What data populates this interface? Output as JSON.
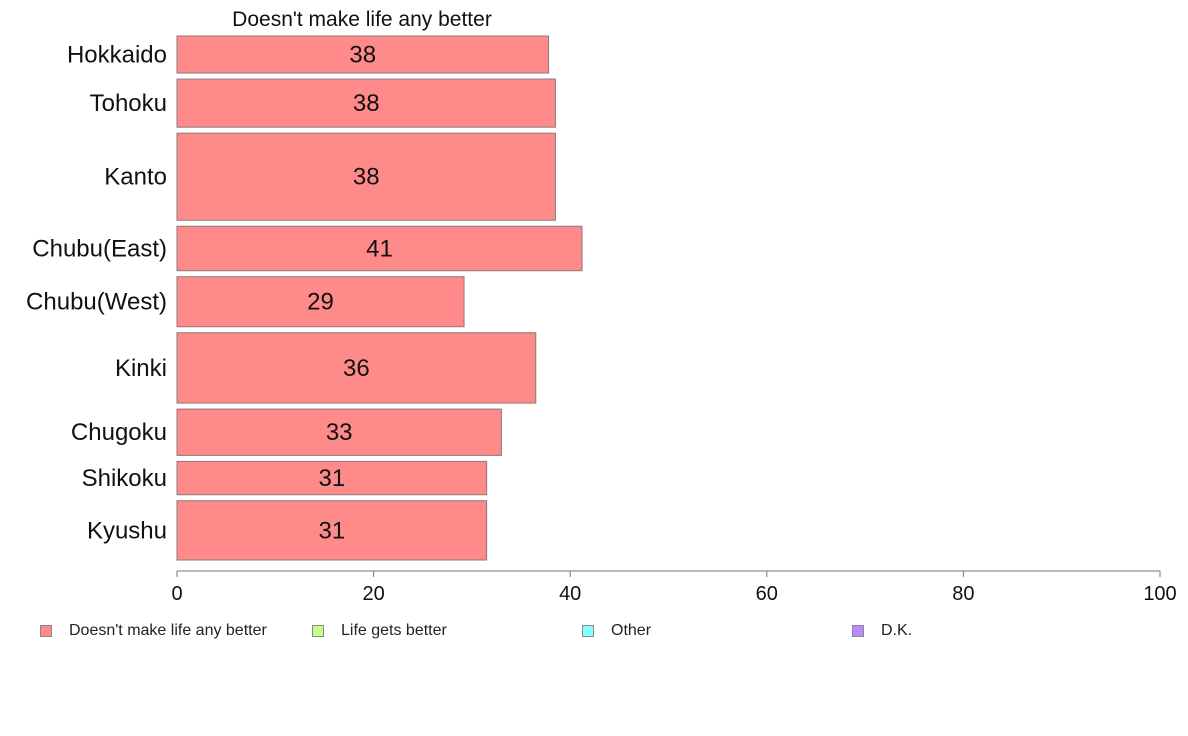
{
  "chart_data": {
    "type": "bar",
    "orientation": "horizontal",
    "title": "Doesn't make life any better",
    "categories": [
      "Hokkaido",
      "Tohoku",
      "Kanto",
      "Chubu(East)",
      "Chubu(West)",
      "Kinki",
      "Chugoku",
      "Shikoku",
      "Kyushu"
    ],
    "series": [
      {
        "name": "Doesn't make life any better",
        "color": "#ff8a8a",
        "values": [
          37.8,
          38.5,
          38.5,
          41.2,
          29.2,
          36.5,
          33.0,
          31.5,
          31.5
        ],
        "labels": [
          "38",
          "38",
          "38",
          "41",
          "29",
          "36",
          "33",
          "31",
          "31"
        ]
      }
    ],
    "bar_weights": [
      1,
      1.3,
      2.35,
      1.2,
      1.35,
      1.9,
      1.25,
      0.9,
      1.6
    ],
    "xlim": [
      0,
      100
    ],
    "xticks": [
      "0",
      "20",
      "40",
      "60",
      "80",
      "100"
    ],
    "grid": false
  },
  "legend": {
    "placement": "bottom",
    "items": [
      {
        "label": "Doesn't make life any better",
        "color": "#ff8a8a"
      },
      {
        "label": "Life gets better",
        "color": "#c6ff8c"
      },
      {
        "label": "Other",
        "color": "#88ffff"
      },
      {
        "label": "D.K.",
        "color": "#bb88ff"
      }
    ]
  }
}
